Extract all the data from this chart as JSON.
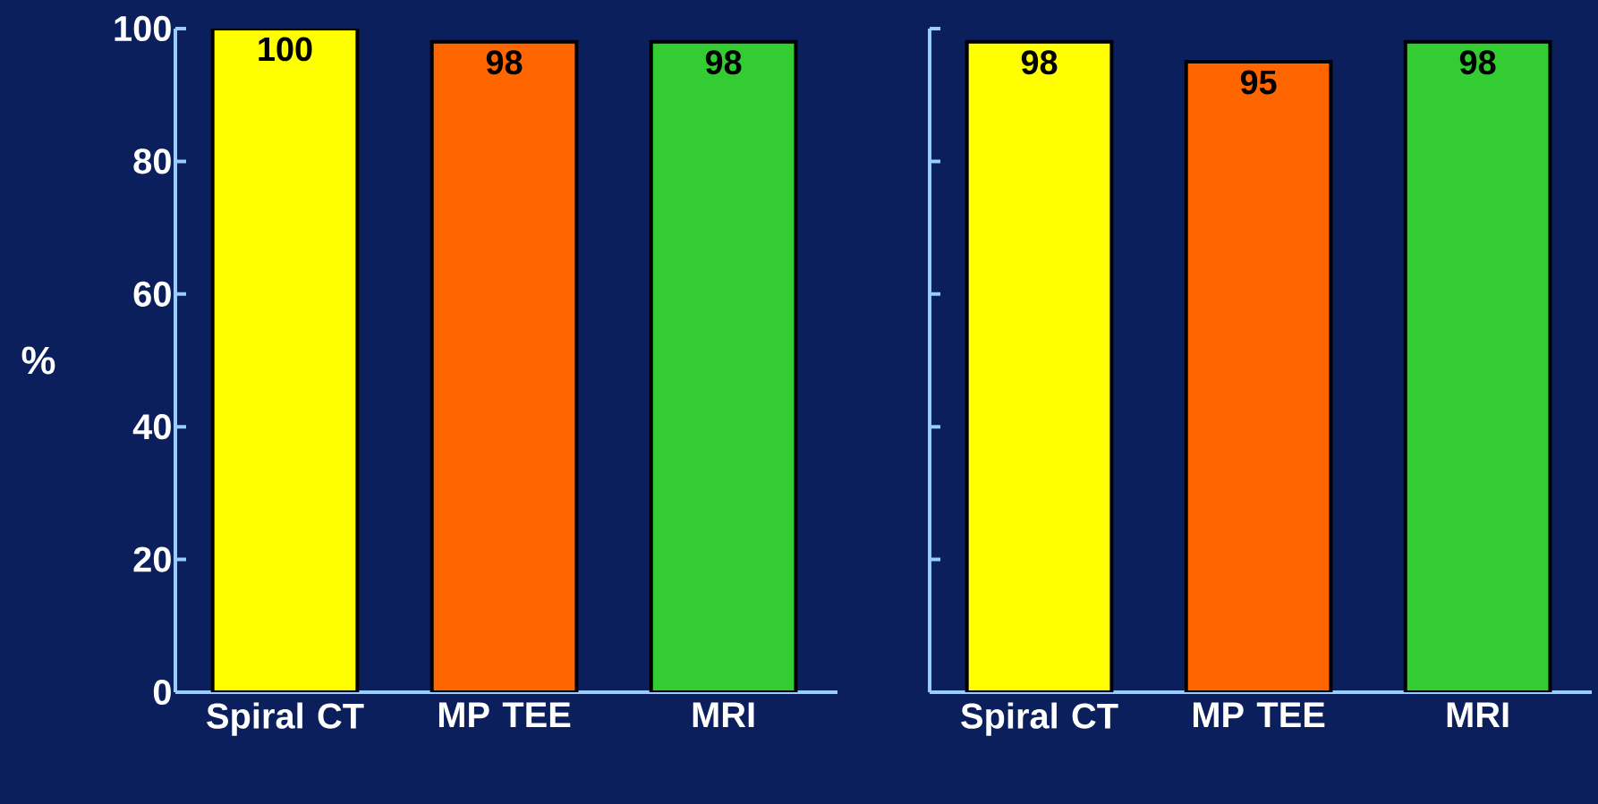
{
  "chart_data": [
    {
      "type": "bar",
      "ylabel": "%",
      "categories": [
        "Spiral CT",
        "MP TEE",
        "MRI"
      ],
      "values": [
        100,
        98,
        98
      ],
      "colors": [
        "#ffff00",
        "#ff6600",
        "#33cc33"
      ],
      "ylim": [
        0,
        100
      ],
      "yticks": [
        0,
        20,
        40,
        60,
        80,
        100
      ],
      "data_labels": true
    },
    {
      "type": "bar",
      "categories": [
        "Spiral CT",
        "MP TEE",
        "MRI"
      ],
      "values": [
        98,
        95,
        98
      ],
      "colors": [
        "#ffff00",
        "#ff6600",
        "#33cc33"
      ],
      "ylim": [
        0,
        100
      ],
      "yticks": [
        0,
        20,
        40,
        60,
        80,
        100
      ],
      "data_labels": true,
      "tick_labels": "x"
    }
  ]
}
